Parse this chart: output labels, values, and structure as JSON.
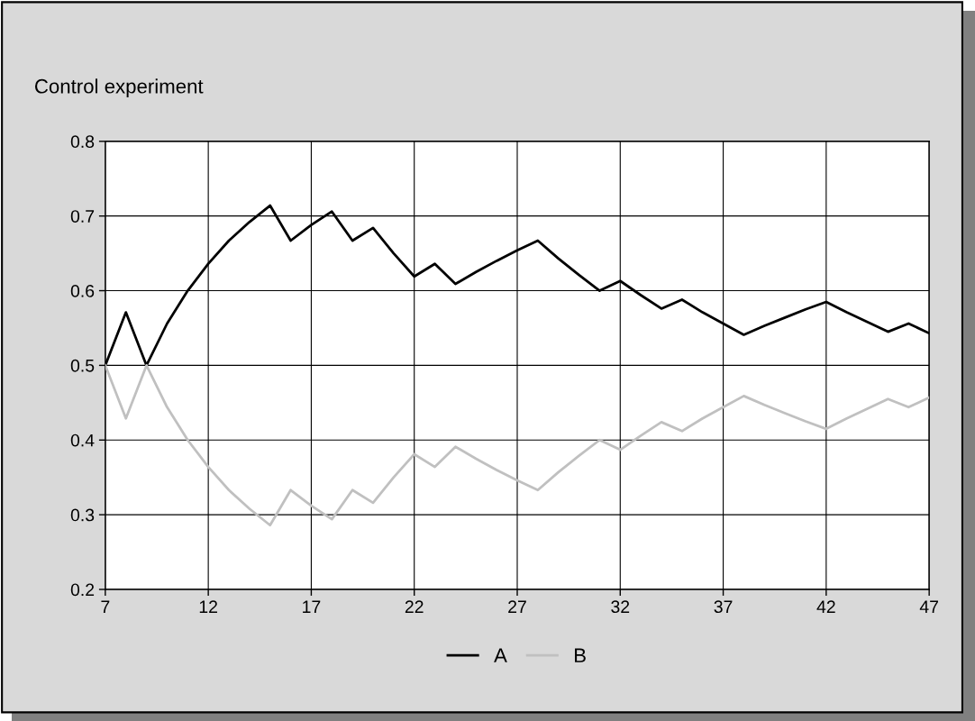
{
  "chart_data": {
    "type": "line",
    "title": "Control experiment",
    "x": [
      7,
      8,
      9,
      10,
      11,
      12,
      13,
      14,
      15,
      16,
      17,
      18,
      19,
      20,
      21,
      22,
      23,
      24,
      25,
      26,
      27,
      28,
      29,
      30,
      31,
      32,
      33,
      34,
      35,
      36,
      37,
      38,
      39,
      40,
      41,
      42,
      43,
      44,
      45,
      46,
      47
    ],
    "series": [
      {
        "name": "A",
        "color": "#000000",
        "values": [
          0.5,
          0.571,
          0.5,
          0.556,
          0.6,
          0.636,
          0.667,
          0.692,
          0.714,
          0.667,
          0.688,
          0.706,
          0.667,
          0.684,
          0.65,
          0.619,
          0.636,
          0.609,
          0.625,
          0.64,
          0.654,
          0.667,
          0.643,
          0.621,
          0.6,
          0.613,
          0.594,
          0.576,
          0.588,
          0.571,
          0.556,
          0.541,
          0.553,
          0.564,
          0.575,
          0.585,
          0.571,
          0.558,
          0.545,
          0.556,
          0.543
        ]
      },
      {
        "name": "B",
        "color": "#c0c0c0",
        "values": [
          0.5,
          0.429,
          0.5,
          0.444,
          0.4,
          0.364,
          0.333,
          0.308,
          0.286,
          0.333,
          0.312,
          0.294,
          0.333,
          0.316,
          0.35,
          0.381,
          0.364,
          0.391,
          0.375,
          0.36,
          0.346,
          0.333,
          0.357,
          0.379,
          0.4,
          0.387,
          0.406,
          0.424,
          0.412,
          0.429,
          0.444,
          0.459,
          0.447,
          0.436,
          0.425,
          0.415,
          0.429,
          0.442,
          0.455,
          0.444,
          0.457
        ]
      }
    ],
    "xlim": [
      7,
      47
    ],
    "xticks": [
      7,
      12,
      17,
      22,
      27,
      32,
      37,
      42,
      47
    ],
    "ylim": [
      0.2,
      0.8
    ],
    "yticks": [
      0.2,
      0.3,
      0.4,
      0.5,
      0.6,
      0.7,
      0.8
    ],
    "grid": true,
    "legend": "bottom",
    "marker": "none",
    "line_style": "solid"
  }
}
